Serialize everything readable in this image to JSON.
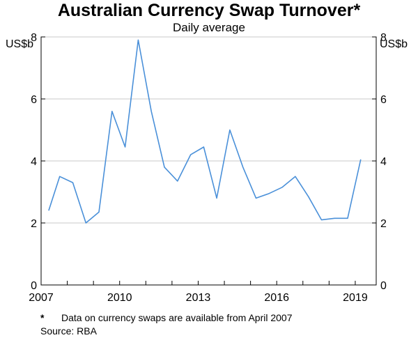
{
  "chart_data": {
    "type": "line",
    "title": "Australian Currency Swap Turnover*",
    "subtitle": "Daily average",
    "yunit_left": "US$b",
    "yunit_right": "US$b",
    "ylim": [
      0,
      8
    ],
    "yticks": [
      0,
      2,
      4,
      6,
      8
    ],
    "xlim": [
      2007,
      2019.8
    ],
    "xticks": [
      2007,
      2010,
      2013,
      2016,
      2019
    ],
    "grid": true,
    "series": [
      {
        "color": "#4a90d9",
        "x": [
          2007.29,
          2007.71,
          2008.21,
          2008.71,
          2009.21,
          2009.71,
          2010.21,
          2010.71,
          2011.21,
          2011.71,
          2012.21,
          2012.71,
          2013.21,
          2013.71,
          2014.21,
          2014.71,
          2015.21,
          2015.71,
          2016.21,
          2016.71,
          2017.21,
          2017.71,
          2018.21,
          2018.71,
          2019.21
        ],
        "values": [
          2.4,
          3.5,
          3.3,
          2.0,
          2.35,
          5.6,
          4.45,
          7.9,
          5.6,
          3.8,
          3.35,
          4.2,
          4.45,
          2.8,
          5.0,
          3.8,
          2.8,
          2.95,
          3.15,
          3.5,
          2.85,
          2.1,
          2.15,
          2.15,
          4.05
        ]
      }
    ]
  },
  "footnote": {
    "mark": "*",
    "text": "Data on currency swaps are available from April 2007"
  },
  "source": "Source:   RBA"
}
